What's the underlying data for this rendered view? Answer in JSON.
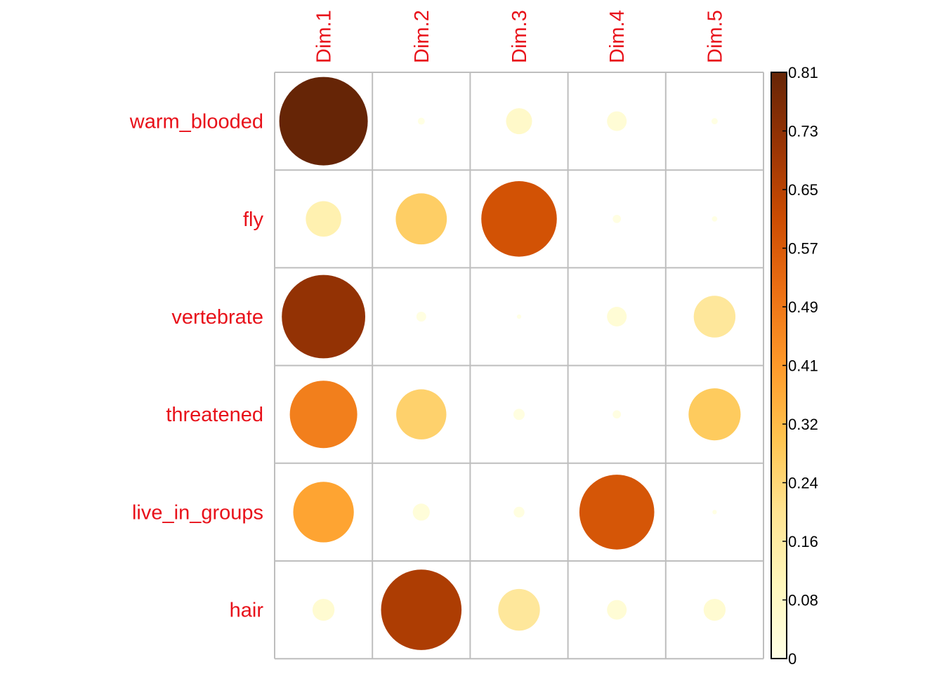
{
  "chart_data": {
    "type": "heatmap",
    "subtype": "corrplot-circle",
    "title": "",
    "columns": [
      "Dim.1",
      "Dim.2",
      "Dim.3",
      "Dim.4",
      "Dim.5"
    ],
    "rows": [
      "warm_blooded",
      "fly",
      "vertebrate",
      "threatened",
      "live_in_groups",
      "hair"
    ],
    "values": [
      [
        0.81,
        0.005,
        0.07,
        0.04,
        0.004
      ],
      [
        0.13,
        0.27,
        0.59,
        0.007,
        0.003
      ],
      [
        0.72,
        0.01,
        0.002,
        0.04,
        0.18
      ],
      [
        0.47,
        0.26,
        0.013,
        0.007,
        0.28
      ],
      [
        0.38,
        0.03,
        0.012,
        0.58,
        0.002
      ],
      [
        0.05,
        0.67,
        0.18,
        0.04,
        0.05
      ]
    ],
    "color_scale": {
      "min": 0,
      "max": 0.81,
      "ticks": [
        "0.81",
        "0.73",
        "0.65",
        "0.57",
        "0.49",
        "0.41",
        "0.32",
        "0.24",
        "0.16",
        "0.08",
        "0"
      ],
      "stops": [
        "#FFFFE5",
        "#FFF7BC",
        "#FEE391",
        "#FEC44F",
        "#FE9929",
        "#EC7014",
        "#CC4C02",
        "#993404",
        "#662506"
      ]
    },
    "label_color": "#e8111a",
    "grid_color": "#bebebe",
    "legend_position": "right"
  }
}
